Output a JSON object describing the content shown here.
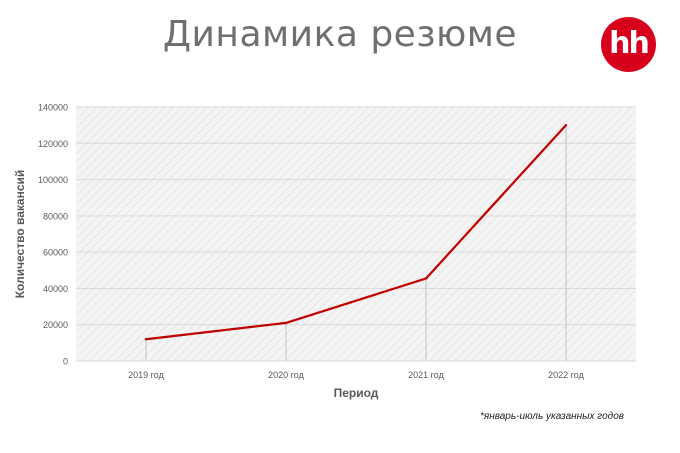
{
  "header": {
    "title": "Динамика резюме",
    "logo_text": "hh",
    "logo_color": "#d6001c"
  },
  "footnote": "*январь-июль указанных годов",
  "colors": {
    "line": "#c00000",
    "axis_text": "#595959",
    "plot_bg": "#f2f2f2",
    "grid": "#d9d9d9",
    "drop_line": "#bfbfbf"
  },
  "chart_data": {
    "type": "line",
    "title": "",
    "xlabel": "Период",
    "ylabel": "Количество вакансий",
    "categories": [
      "2019 год",
      "2020 год",
      "2021 год",
      "2022 год"
    ],
    "series": [
      {
        "values": [
          12000,
          21000,
          45500,
          130000
        ]
      }
    ],
    "ylim": [
      0,
      140000
    ],
    "yticks": [
      "0",
      "20000",
      "40000",
      "60000",
      "80000",
      "100000",
      "120000",
      "140000"
    ],
    "grid": true,
    "legend": "none"
  }
}
